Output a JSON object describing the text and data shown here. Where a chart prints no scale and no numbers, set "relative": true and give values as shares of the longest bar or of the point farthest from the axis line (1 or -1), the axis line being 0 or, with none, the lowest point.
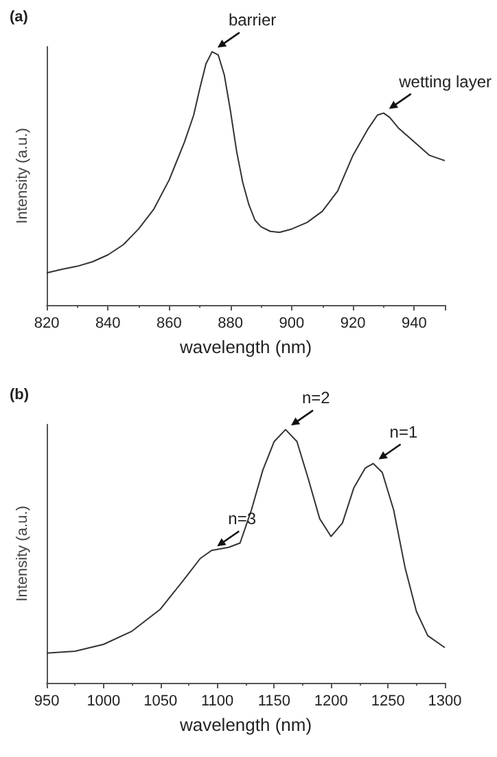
{
  "chart_data": [
    {
      "type": "line",
      "title": "(a)",
      "xlabel": "wavelength (nm)",
      "ylabel": "Intensity (a.u.)",
      "relative": true,
      "xlim": [
        820,
        950
      ],
      "xticks": [
        820,
        840,
        860,
        880,
        900,
        920,
        940
      ],
      "marker": "none",
      "line_style": "solid",
      "series": [
        {
          "color": "#333333",
          "x": [
            820,
            825,
            830,
            835,
            840,
            845,
            850,
            855,
            860,
            865,
            868,
            870,
            872,
            874,
            876,
            878,
            880,
            882,
            884,
            886,
            888,
            890,
            893,
            896,
            900,
            905,
            910,
            915,
            920,
            925,
            928,
            930,
            932,
            935,
            940,
            945,
            950
          ],
          "values": [
            0.127,
            0.141,
            0.153,
            0.171,
            0.198,
            0.238,
            0.3,
            0.379,
            0.494,
            0.644,
            0.75,
            0.855,
            0.952,
            1,
            0.988,
            0.908,
            0.767,
            0.608,
            0.485,
            0.397,
            0.335,
            0.309,
            0.291,
            0.287,
            0.3,
            0.326,
            0.37,
            0.45,
            0.591,
            0.697,
            0.75,
            0.758,
            0.741,
            0.697,
            0.644,
            0.591,
            0.57
          ]
        }
      ],
      "annotations": [
        {
          "text": "barrier",
          "x": 874,
          "y": 1
        },
        {
          "text": "wetting layer",
          "x": 930,
          "y": 0.758
        }
      ]
    },
    {
      "type": "line",
      "title": "(b)",
      "xlabel": "wavelength (nm)",
      "ylabel": "Intensity (a.u.)",
      "relative": true,
      "xlim": [
        950,
        1300
      ],
      "xticks": [
        950,
        1000,
        1050,
        1100,
        1150,
        1200,
        1250,
        1300
      ],
      "marker": "none",
      "line_style": "solid",
      "series": [
        {
          "color": "#333333",
          "x": [
            950,
            975,
            1000,
            1025,
            1050,
            1070,
            1085,
            1095,
            1110,
            1120,
            1130,
            1140,
            1150,
            1160,
            1170,
            1180,
            1190,
            1200,
            1210,
            1220,
            1230,
            1237,
            1245,
            1255,
            1265,
            1275,
            1285,
            1300
          ],
          "values": [
            0.117,
            0.125,
            0.152,
            0.204,
            0.291,
            0.404,
            0.491,
            0.523,
            0.535,
            0.552,
            0.683,
            0.84,
            0.953,
            1,
            0.953,
            0.805,
            0.648,
            0.578,
            0.631,
            0.77,
            0.848,
            0.866,
            0.831,
            0.683,
            0.456,
            0.282,
            0.186,
            0.139
          ]
        }
      ],
      "annotations": [
        {
          "text": "n=3",
          "x": 1095,
          "y": 0.523
        },
        {
          "text": "n=2",
          "x": 1160,
          "y": 1
        },
        {
          "text": "n=1",
          "x": 1237,
          "y": 0.866
        }
      ]
    }
  ]
}
